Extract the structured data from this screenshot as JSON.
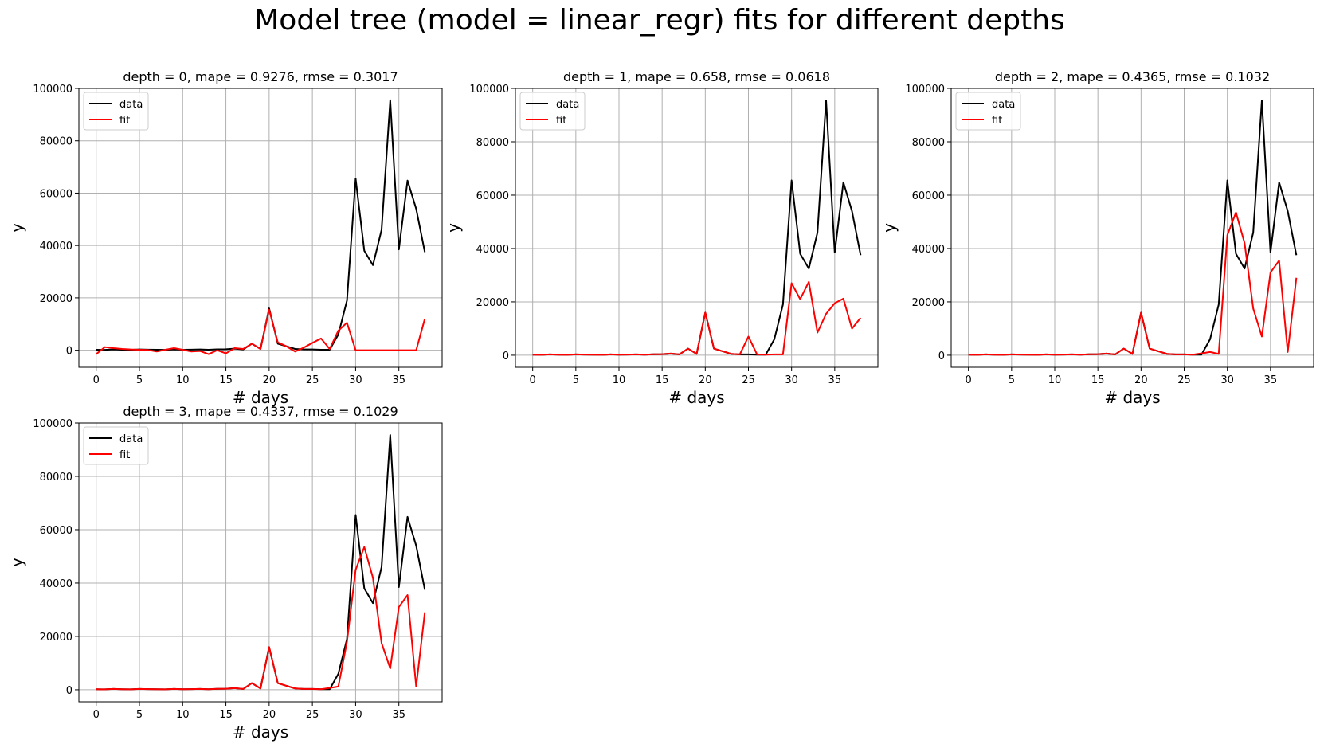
{
  "figure": {
    "title": "Model tree (model = linear_regr) fits for different depths"
  },
  "colors": {
    "data": "#000000",
    "fit": "#ff0000",
    "grid": "#b0b0b0"
  },
  "chart_data": [
    {
      "type": "line",
      "title": "depth = 0, mape = 0.9276, rmse = 0.3017",
      "xlabel": "# days",
      "ylabel": "y",
      "xlim": [
        -2,
        40
      ],
      "ylim": [
        -6500,
        100000
      ],
      "xticks": [
        0,
        5,
        10,
        15,
        20,
        25,
        30,
        35
      ],
      "yticks": [
        0,
        20000,
        40000,
        60000,
        80000,
        100000
      ],
      "grid": true,
      "legend": "upper-left",
      "series": [
        {
          "name": "data",
          "color": "#000000",
          "x": [
            0,
            1,
            2,
            3,
            4,
            5,
            6,
            7,
            8,
            9,
            10,
            11,
            12,
            13,
            14,
            15,
            16,
            17,
            18,
            19,
            20,
            21,
            22,
            23,
            24,
            25,
            26,
            27,
            28,
            29,
            30,
            31,
            32,
            33,
            34,
            35,
            36,
            37,
            38
          ],
          "y": [
            200,
            150,
            300,
            200,
            150,
            300,
            250,
            200,
            150,
            300,
            200,
            250,
            300,
            200,
            350,
            400,
            600,
            300,
            2500,
            500,
            16000,
            2500,
            1500,
            500,
            300,
            300,
            200,
            200,
            6000,
            19000,
            65500,
            38000,
            32500,
            46000,
            95500,
            38500,
            64800,
            54000,
            37500
          ]
        },
        {
          "name": "fit",
          "color": "#ff0000",
          "x": [
            0,
            1,
            2,
            3,
            4,
            5,
            6,
            7,
            8,
            9,
            10,
            11,
            12,
            13,
            14,
            15,
            16,
            17,
            18,
            19,
            20,
            21,
            22,
            23,
            24,
            25,
            26,
            27,
            28,
            29,
            30,
            31,
            32,
            33,
            34,
            35,
            36,
            37,
            38
          ],
          "y": [
            -1500,
            1200,
            800,
            500,
            300,
            200,
            100,
            -500,
            200,
            800,
            200,
            -500,
            -300,
            -1500,
            0,
            -1200,
            800,
            500,
            2500,
            500,
            15500,
            3000,
            1500,
            -500,
            1000,
            2800,
            4500,
            500,
            7500,
            10500,
            0,
            0,
            0,
            0,
            0,
            0,
            0,
            0,
            12000
          ]
        }
      ]
    },
    {
      "type": "line",
      "title": "depth = 1, mape = 0.658, rmse = 0.0618",
      "xlabel": "# days",
      "ylabel": "y",
      "xlim": [
        -2,
        40
      ],
      "ylim": [
        -4500,
        100000
      ],
      "xticks": [
        0,
        5,
        10,
        15,
        20,
        25,
        30,
        35
      ],
      "yticks": [
        0,
        20000,
        40000,
        60000,
        80000,
        100000
      ],
      "grid": true,
      "legend": "upper-left",
      "series": [
        {
          "name": "data",
          "color": "#000000",
          "x": [
            0,
            1,
            2,
            3,
            4,
            5,
            6,
            7,
            8,
            9,
            10,
            11,
            12,
            13,
            14,
            15,
            16,
            17,
            18,
            19,
            20,
            21,
            22,
            23,
            24,
            25,
            26,
            27,
            28,
            29,
            30,
            31,
            32,
            33,
            34,
            35,
            36,
            37,
            38
          ],
          "y": [
            200,
            150,
            300,
            200,
            150,
            300,
            250,
            200,
            150,
            300,
            200,
            250,
            300,
            200,
            350,
            400,
            600,
            300,
            2500,
            500,
            16000,
            2500,
            1500,
            500,
            300,
            300,
            200,
            200,
            6000,
            19000,
            65500,
            38000,
            32500,
            46000,
            95500,
            38500,
            64800,
            54000,
            37500
          ]
        },
        {
          "name": "fit",
          "color": "#ff0000",
          "x": [
            0,
            1,
            2,
            3,
            4,
            5,
            6,
            7,
            8,
            9,
            10,
            11,
            12,
            13,
            14,
            15,
            16,
            17,
            18,
            19,
            20,
            21,
            22,
            23,
            24,
            25,
            26,
            27,
            28,
            29,
            30,
            31,
            32,
            33,
            34,
            35,
            36,
            37,
            38
          ],
          "y": [
            200,
            150,
            300,
            200,
            150,
            300,
            250,
            200,
            150,
            300,
            200,
            250,
            300,
            200,
            350,
            400,
            600,
            300,
            2500,
            500,
            16000,
            2500,
            1500,
            500,
            300,
            7000,
            300,
            200,
            300,
            300,
            27000,
            21000,
            27500,
            8500,
            15500,
            19500,
            21200,
            10000,
            14000
          ]
        }
      ]
    },
    {
      "type": "line",
      "title": "depth = 2, mape = 0.4365, rmse = 0.1032",
      "xlabel": "# days",
      "ylabel": "y",
      "xlim": [
        -2,
        40
      ],
      "ylim": [
        -4500,
        100000
      ],
      "xticks": [
        0,
        5,
        10,
        15,
        20,
        25,
        30,
        35
      ],
      "yticks": [
        0,
        20000,
        40000,
        60000,
        80000,
        100000
      ],
      "grid": true,
      "legend": "upper-left",
      "series": [
        {
          "name": "data",
          "color": "#000000",
          "x": [
            0,
            1,
            2,
            3,
            4,
            5,
            6,
            7,
            8,
            9,
            10,
            11,
            12,
            13,
            14,
            15,
            16,
            17,
            18,
            19,
            20,
            21,
            22,
            23,
            24,
            25,
            26,
            27,
            28,
            29,
            30,
            31,
            32,
            33,
            34,
            35,
            36,
            37,
            38
          ],
          "y": [
            200,
            150,
            300,
            200,
            150,
            300,
            250,
            200,
            150,
            300,
            200,
            250,
            300,
            200,
            350,
            400,
            600,
            300,
            2500,
            500,
            16000,
            2500,
            1500,
            500,
            300,
            300,
            200,
            200,
            6000,
            19000,
            65500,
            38000,
            32500,
            46000,
            95500,
            38500,
            64800,
            54000,
            37500
          ]
        },
        {
          "name": "fit",
          "color": "#ff0000",
          "x": [
            0,
            1,
            2,
            3,
            4,
            5,
            6,
            7,
            8,
            9,
            10,
            11,
            12,
            13,
            14,
            15,
            16,
            17,
            18,
            19,
            20,
            21,
            22,
            23,
            24,
            25,
            26,
            27,
            28,
            29,
            30,
            31,
            32,
            33,
            34,
            35,
            36,
            37,
            38
          ],
          "y": [
            200,
            150,
            300,
            200,
            150,
            300,
            250,
            200,
            150,
            300,
            200,
            250,
            300,
            200,
            350,
            400,
            600,
            300,
            2500,
            500,
            16000,
            2500,
            1500,
            500,
            300,
            300,
            200,
            700,
            1200,
            500,
            45000,
            53500,
            42000,
            17500,
            7000,
            31000,
            35500,
            1200,
            29000
          ]
        }
      ]
    },
    {
      "type": "line",
      "title": "depth = 3, mape = 0.4337, rmse = 0.1029",
      "xlabel": "# days",
      "ylabel": "y",
      "xlim": [
        -2,
        40
      ],
      "ylim": [
        -4500,
        100000
      ],
      "xticks": [
        0,
        5,
        10,
        15,
        20,
        25,
        30,
        35
      ],
      "yticks": [
        0,
        20000,
        40000,
        60000,
        80000,
        100000
      ],
      "grid": true,
      "legend": "upper-left",
      "series": [
        {
          "name": "data",
          "color": "#000000",
          "x": [
            0,
            1,
            2,
            3,
            4,
            5,
            6,
            7,
            8,
            9,
            10,
            11,
            12,
            13,
            14,
            15,
            16,
            17,
            18,
            19,
            20,
            21,
            22,
            23,
            24,
            25,
            26,
            27,
            28,
            29,
            30,
            31,
            32,
            33,
            34,
            35,
            36,
            37,
            38
          ],
          "y": [
            200,
            150,
            300,
            200,
            150,
            300,
            250,
            200,
            150,
            300,
            200,
            250,
            300,
            200,
            350,
            400,
            600,
            300,
            2500,
            500,
            16000,
            2500,
            1500,
            500,
            300,
            300,
            200,
            200,
            6000,
            19000,
            65500,
            38000,
            32500,
            46000,
            95500,
            38500,
            64800,
            54000,
            37500
          ]
        },
        {
          "name": "fit",
          "color": "#ff0000",
          "x": [
            0,
            1,
            2,
            3,
            4,
            5,
            6,
            7,
            8,
            9,
            10,
            11,
            12,
            13,
            14,
            15,
            16,
            17,
            18,
            19,
            20,
            21,
            22,
            23,
            24,
            25,
            26,
            27,
            28,
            29,
            30,
            31,
            32,
            33,
            34,
            35,
            36,
            37,
            38
          ],
          "y": [
            200,
            150,
            300,
            200,
            150,
            300,
            250,
            200,
            150,
            300,
            200,
            250,
            300,
            200,
            350,
            400,
            600,
            300,
            2500,
            500,
            16000,
            2500,
            1500,
            500,
            300,
            300,
            200,
            700,
            1200,
            18000,
            45000,
            53500,
            42000,
            17500,
            8000,
            31000,
            35500,
            1200,
            29000
          ]
        }
      ]
    }
  ]
}
